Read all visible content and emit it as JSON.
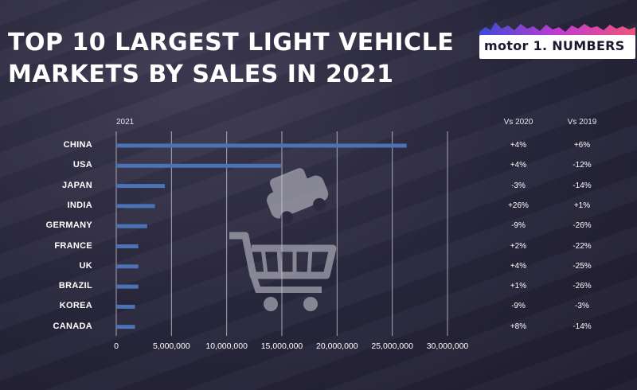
{
  "title": {
    "line1": "TOP 10 LARGEST LIGHT VEHICLE",
    "line2": "MARKETS BY SALES IN 2021"
  },
  "brand": {
    "logo_text": "motor 1. NUMBERS"
  },
  "colors": {
    "bar": "#4a72b5",
    "background": "#26243a",
    "text": "#ffffff",
    "grid": "#c8c8d0"
  },
  "icon": {
    "name": "shopping-cart-with-car-icon"
  },
  "chart_data": {
    "type": "bar",
    "orientation": "horizontal",
    "series_label": "2021",
    "categories": [
      "CHINA",
      "USA",
      "JAPAN",
      "INDIA",
      "GERMANY",
      "FRANCE",
      "UK",
      "BRAZIL",
      "KOREA",
      "CANADA"
    ],
    "values": [
      26300000,
      15000000,
      4400000,
      3500000,
      2800000,
      2000000,
      2000000,
      2000000,
      1700000,
      1700000
    ],
    "xlim": [
      0,
      30000000
    ],
    "xticks": [
      "0",
      "5,000,000",
      "10,000,000",
      "15,000,000",
      "20,000,000",
      "25,000,000",
      "30,000,000"
    ],
    "grid": true,
    "comparison_headers": [
      "Vs 2020",
      "Vs 2019"
    ],
    "vs_2020": [
      "+4%",
      "+4%",
      "-3%",
      "+26%",
      "-9%",
      "+2%",
      "+4%",
      "+1%",
      "-9%",
      "+8%"
    ],
    "vs_2019": [
      "+6%",
      "-12%",
      "-14%",
      "+1%",
      "-26%",
      "-22%",
      "-25%",
      "-26%",
      "-3%",
      "-14%"
    ]
  }
}
